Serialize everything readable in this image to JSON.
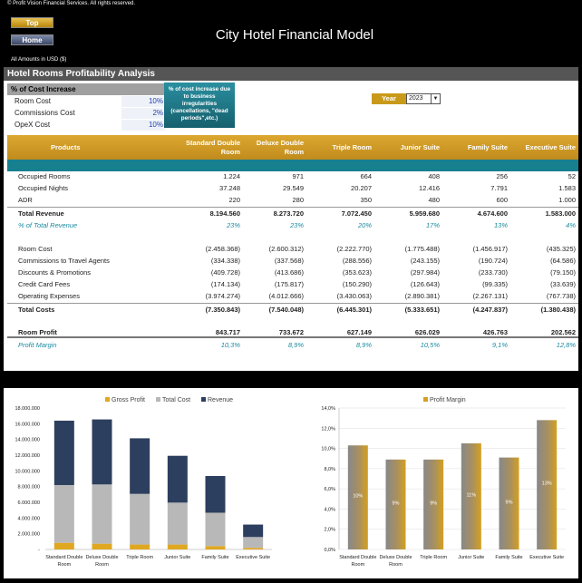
{
  "header": {
    "copyright": "© Profit Vision Financial Services. All rights reserved.",
    "top_button": "Top",
    "home_button": "Home",
    "title": "City Hotel Financial Model",
    "amounts_note": "All Amounts in  USD ($)"
  },
  "section": {
    "title": "Hotel Rooms Profitability Analysis"
  },
  "cost_increase": {
    "heading": "% of Cost Increase",
    "rows": [
      {
        "label": "Room Cost",
        "value": "10%"
      },
      {
        "label": "Commissions Cost",
        "value": "2%"
      },
      {
        "label": "OpeX Cost",
        "value": "10%"
      }
    ],
    "note": "% of cost increase due to business irregularities (cancellations, \"dead periods\",etc.)"
  },
  "year": {
    "label": "Year",
    "value": "2023"
  },
  "table": {
    "products_header": "Products",
    "columns": [
      "Standard Double Room",
      "Deluxe Double Room",
      "Triple Room",
      "Junior Suite",
      "Family Suite",
      "Executive Suite"
    ],
    "rows": [
      {
        "label": "Occupied Rooms",
        "values": [
          "1.224",
          "971",
          "664",
          "408",
          "256",
          "52"
        ],
        "style": ""
      },
      {
        "label": "Occupied Nights",
        "values": [
          "37.248",
          "29.549",
          "20.207",
          "12.416",
          "7.791",
          "1.583"
        ],
        "style": ""
      },
      {
        "label": "ADR",
        "values": [
          "220",
          "280",
          "350",
          "480",
          "600",
          "1.000"
        ],
        "style": ""
      },
      {
        "label": "Total Revenue",
        "values": [
          "8.194.560",
          "8.273.720",
          "7.072.450",
          "5.959.680",
          "4.674.600",
          "1.583.000"
        ],
        "style": "bold"
      },
      {
        "label": "% of Total Revenue",
        "values": [
          "23%",
          "23%",
          "20%",
          "17%",
          "13%",
          "4%"
        ],
        "style": "italic"
      },
      {
        "label": "Room Cost",
        "values": [
          "(2.458.368)",
          "(2.600.312)",
          "(2.222.770)",
          "(1.775.488)",
          "(1.456.917)",
          "(435.325)"
        ],
        "style": ""
      },
      {
        "label": "Commissions to Travel Agents",
        "values": [
          "(334.338)",
          "(337.568)",
          "(288.556)",
          "(243.155)",
          "(190.724)",
          "(64.586)"
        ],
        "style": ""
      },
      {
        "label": "Discounts & Promotions",
        "values": [
          "(409.728)",
          "(413.686)",
          "(353.623)",
          "(297.984)",
          "(233.730)",
          "(79.150)"
        ],
        "style": ""
      },
      {
        "label": "Credit Card Fees",
        "values": [
          "(174.134)",
          "(175.817)",
          "(150.290)",
          "(126.643)",
          "(99.335)",
          "(33.639)"
        ],
        "style": ""
      },
      {
        "label": "Operating Expenses",
        "values": [
          "(3.974.274)",
          "(4.012.666)",
          "(3.430.063)",
          "(2.890.381)",
          "(2.267.131)",
          "(767.738)"
        ],
        "style": ""
      },
      {
        "label": "Total Costs",
        "values": [
          "(7.350.843)",
          "(7.540.048)",
          "(6.445.301)",
          "(5.333.651)",
          "(4.247.837)",
          "(1.380.438)"
        ],
        "style": "bold"
      },
      {
        "label": "Room Profit",
        "values": [
          "843.717",
          "733.672",
          "627.149",
          "626.029",
          "426.763",
          "202.562"
        ],
        "style": "bold"
      },
      {
        "label": "Profit Margin",
        "values": [
          "10,3%",
          "8,9%",
          "8,9%",
          "10,5%",
          "9,1%",
          "12,8%"
        ],
        "style": "italic"
      }
    ]
  },
  "chart_data": [
    {
      "type": "bar",
      "stacked": true,
      "categories": [
        "Standard Double Room",
        "Deluxe Double Room",
        "Triple Room",
        "Junior Suite",
        "Family Suite",
        "Executive Suite"
      ],
      "series": [
        {
          "name": "Gross Profit",
          "values": [
            843717,
            733672,
            627149,
            626029,
            426763,
            202562
          ],
          "color": "#e0a820"
        },
        {
          "name": "Total Cost",
          "values": [
            7350843,
            7540048,
            6445301,
            5333651,
            4247837,
            1380438
          ],
          "color": "#b8b8b8"
        },
        {
          "name": "Revenue",
          "values": [
            8194560,
            8273720,
            7072450,
            5959680,
            4674600,
            1583000
          ],
          "color": "#2d3f5e"
        }
      ],
      "ylim": [
        0,
        18000000
      ],
      "yticks": [
        "-",
        "2.000.000",
        "4.000.000",
        "6.000.000",
        "8.000.000",
        "10.000.000",
        "12.000.000",
        "14.000.000",
        "16.000.000",
        "18.000.000"
      ],
      "legend_position": "top"
    },
    {
      "type": "bar",
      "categories": [
        "Standard Double Room",
        "Deluxe Double Room",
        "Triple Room",
        "Junior Suite",
        "Family Suite",
        "Executive Suite"
      ],
      "series": [
        {
          "name": "Profit Margin",
          "values": [
            10.3,
            8.9,
            8.9,
            10.5,
            9.1,
            12.8
          ],
          "color": "#d4a020"
        }
      ],
      "data_labels": [
        "10%",
        "9%",
        "9%",
        "11%",
        "9%",
        "13%"
      ],
      "ylim": [
        0,
        14
      ],
      "yticks": [
        "0,0%",
        "2,0%",
        "4,0%",
        "6,0%",
        "8,0%",
        "10,0%",
        "12,0%",
        "14,0%"
      ],
      "legend_position": "top"
    }
  ]
}
